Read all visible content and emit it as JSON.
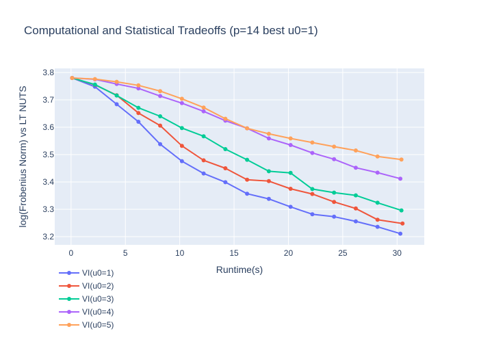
{
  "chart_data": {
    "type": "line",
    "title": "Computational and Statistical Tradeoffs (p=14 best u0=1)",
    "xlabel": "Runtime(s)",
    "ylabel": "log(Frobenius Norm) vs LT NUTS",
    "xlim": [
      -1.5,
      32.5
    ],
    "ylim": [
      3.17,
      3.815
    ],
    "x_ticks": [
      0,
      5,
      10,
      15,
      20,
      25,
      30
    ],
    "y_ticks": [
      3.2,
      3.3,
      3.4,
      3.5,
      3.6,
      3.7,
      3.8
    ],
    "grid": true,
    "legend_position": "bottom-left",
    "plot_bg": "#e5ecf6",
    "series": [
      {
        "name": "VI(u0=1)",
        "color": "#636efa",
        "x": [
          0.1,
          2.2,
          4.2,
          6.2,
          8.2,
          10.2,
          12.2,
          14.2,
          16.2,
          18.2,
          20.2,
          22.2,
          24.2,
          26.2,
          28.2,
          30.3
        ],
        "y": [
          3.78,
          3.748,
          3.684,
          3.62,
          3.538,
          3.476,
          3.431,
          3.399,
          3.357,
          3.338,
          3.309,
          3.282,
          3.273,
          3.256,
          3.236,
          3.211
        ]
      },
      {
        "name": "VI(u0=2)",
        "color": "#ef553b",
        "x": [
          0.1,
          2.2,
          4.2,
          6.2,
          8.2,
          10.2,
          12.2,
          14.2,
          16.2,
          18.2,
          20.2,
          22.2,
          24.2,
          26.2,
          28.2,
          30.5
        ],
        "y": [
          3.78,
          3.755,
          3.717,
          3.652,
          3.606,
          3.532,
          3.479,
          3.45,
          3.408,
          3.403,
          3.375,
          3.356,
          3.327,
          3.303,
          3.262,
          3.248
        ]
      },
      {
        "name": "VI(u0=3)",
        "color": "#00cc96",
        "x": [
          0.1,
          2.2,
          4.2,
          6.2,
          8.2,
          10.2,
          12.2,
          14.2,
          16.2,
          18.2,
          20.2,
          22.2,
          24.2,
          26.2,
          28.2,
          30.4
        ],
        "y": [
          3.78,
          3.756,
          3.716,
          3.671,
          3.64,
          3.597,
          3.567,
          3.52,
          3.481,
          3.439,
          3.433,
          3.374,
          3.361,
          3.351,
          3.324,
          3.296
        ]
      },
      {
        "name": "VI(u0=4)",
        "color": "#ab63fa",
        "x": [
          0.1,
          2.2,
          4.2,
          6.2,
          8.2,
          10.2,
          12.2,
          14.2,
          16.2,
          18.2,
          20.2,
          22.2,
          24.2,
          26.2,
          28.2,
          30.3
        ],
        "y": [
          3.78,
          3.775,
          3.758,
          3.742,
          3.714,
          3.688,
          3.658,
          3.624,
          3.596,
          3.559,
          3.535,
          3.506,
          3.483,
          3.452,
          3.434,
          3.412
        ]
      },
      {
        "name": "VI(u0=5)",
        "color": "#ffa15a",
        "x": [
          0.1,
          2.2,
          4.2,
          6.2,
          8.2,
          10.2,
          12.2,
          14.2,
          16.2,
          18.2,
          20.2,
          22.2,
          24.2,
          26.2,
          28.2,
          30.4
        ],
        "y": [
          3.78,
          3.776,
          3.766,
          3.753,
          3.732,
          3.704,
          3.672,
          3.631,
          3.596,
          3.576,
          3.559,
          3.544,
          3.529,
          3.515,
          3.493,
          3.482
        ]
      }
    ]
  }
}
